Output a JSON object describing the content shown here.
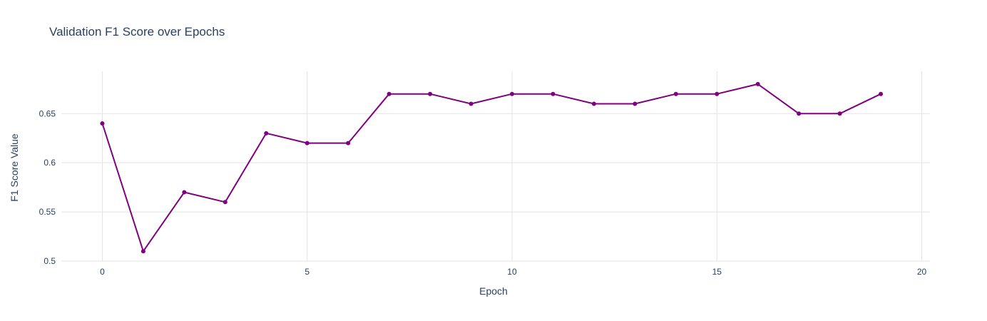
{
  "chart_data": {
    "type": "line",
    "title": "Validation F1 Score over Epochs",
    "xlabel": "Epoch",
    "ylabel": "F1 Score Value",
    "xlim": [
      -1.0,
      20.2
    ],
    "ylim": [
      0.5,
      0.693
    ],
    "xticks": [
      0,
      5,
      10,
      15,
      20
    ],
    "xtick_labels": [
      "0",
      "5",
      "10",
      "15",
      "20"
    ],
    "yticks": [
      0.5,
      0.55,
      0.6,
      0.65
    ],
    "ytick_labels": [
      "0.5",
      "0.55",
      "0.6",
      "0.65"
    ],
    "grid": true,
    "legend": false,
    "series": [
      {
        "color": "#800080",
        "mode": "lines+markers",
        "x": [
          0,
          1,
          2,
          3,
          4,
          5,
          6,
          7,
          8,
          9,
          10,
          11,
          12,
          13,
          14,
          15,
          16,
          17,
          18,
          19
        ],
        "y": [
          0.64,
          0.51,
          0.57,
          0.56,
          0.63,
          0.62,
          0.62,
          0.67,
          0.67,
          0.66,
          0.67,
          0.67,
          0.66,
          0.66,
          0.67,
          0.67,
          0.68,
          0.65,
          0.65,
          0.67
        ]
      }
    ]
  }
}
